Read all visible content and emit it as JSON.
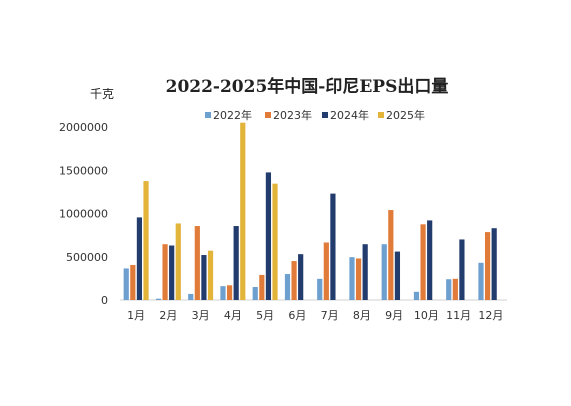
{
  "chart_data": {
    "type": "bar",
    "title": "2022-2025年中国-印尼EPS出口量",
    "unit_label": "千克",
    "categories": [
      "1月",
      "2月",
      "3月",
      "4月",
      "5月",
      "6月",
      "7月",
      "8月",
      "9月",
      "10月",
      "11月",
      "12月"
    ],
    "ylim": [
      0,
      2000000
    ],
    "yticks": [
      "0",
      "500000",
      "1000000",
      "1500000",
      "2000000"
    ],
    "grid": false,
    "legend_position": "top",
    "series": [
      {
        "name": "2022年",
        "color": "#6d9fcf",
        "values": [
          365000,
          15000,
          70000,
          160000,
          150000,
          300000,
          245000,
          495000,
          645000,
          95000,
          240000,
          430000
        ]
      },
      {
        "name": "2023年",
        "color": "#e07b39",
        "values": [
          405000,
          645000,
          855000,
          170000,
          290000,
          450000,
          665000,
          480000,
          1040000,
          875000,
          245000,
          785000
        ]
      },
      {
        "name": "2024年",
        "color": "#233c6e",
        "values": [
          955000,
          630000,
          520000,
          855000,
          1475000,
          530000,
          1230000,
          645000,
          560000,
          920000,
          700000,
          830000
        ]
      },
      {
        "name": "2025年",
        "color": "#e2b43a",
        "values": [
          1375000,
          885000,
          570000,
          2050000,
          1345000,
          null,
          null,
          null,
          null,
          null,
          null,
          null
        ]
      }
    ]
  }
}
